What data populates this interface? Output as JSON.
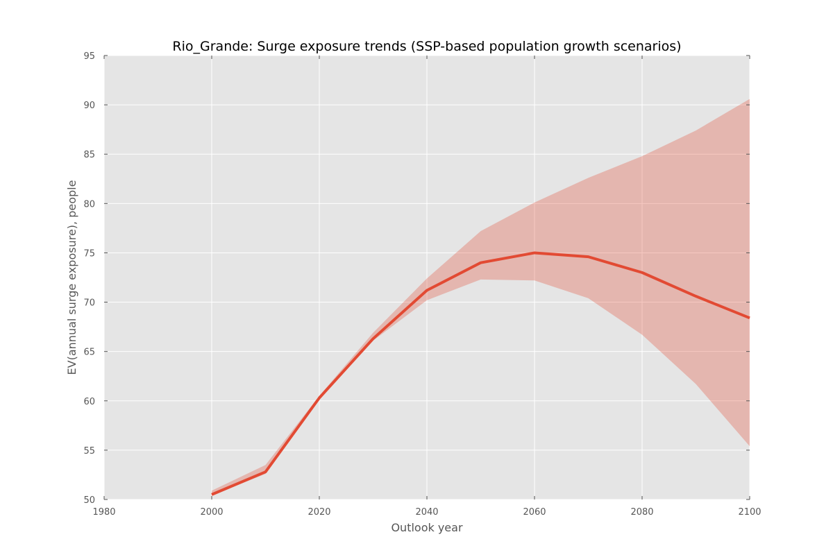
{
  "chart_data": {
    "type": "line",
    "title": "Rio_Grande: Surge exposure trends (SSP-based population growth scenarios)",
    "xlabel": "Outlook year",
    "ylabel": "EV(annual surge exposure), people",
    "xlim": [
      1980,
      2100
    ],
    "ylim": [
      50,
      95
    ],
    "xticks": [
      1980,
      2000,
      2020,
      2040,
      2060,
      2080,
      2100
    ],
    "yticks": [
      50,
      55,
      60,
      65,
      70,
      75,
      80,
      85,
      90,
      95
    ],
    "grid": true,
    "legend": "none",
    "colors": {
      "line": "#e24a33",
      "band": "#e24a33",
      "plot_background": "#e5e5e5"
    },
    "x": [
      2000,
      2010,
      2020,
      2030,
      2040,
      2050,
      2060,
      2070,
      2080,
      2090,
      2100
    ],
    "series": [
      {
        "values": [
          50.5,
          52.8,
          60.3,
          66.3,
          71.2,
          74.0,
          75.0,
          74.6,
          73.0,
          70.6,
          68.4
        ]
      }
    ],
    "band": {
      "lower": [
        50.4,
        52.6,
        60.2,
        66.1,
        70.2,
        72.3,
        72.2,
        70.4,
        66.7,
        61.7,
        55.4
      ],
      "upper": [
        50.9,
        53.5,
        60.5,
        66.9,
        72.4,
        77.2,
        80.1,
        82.6,
        84.8,
        87.4,
        90.6
      ]
    }
  }
}
